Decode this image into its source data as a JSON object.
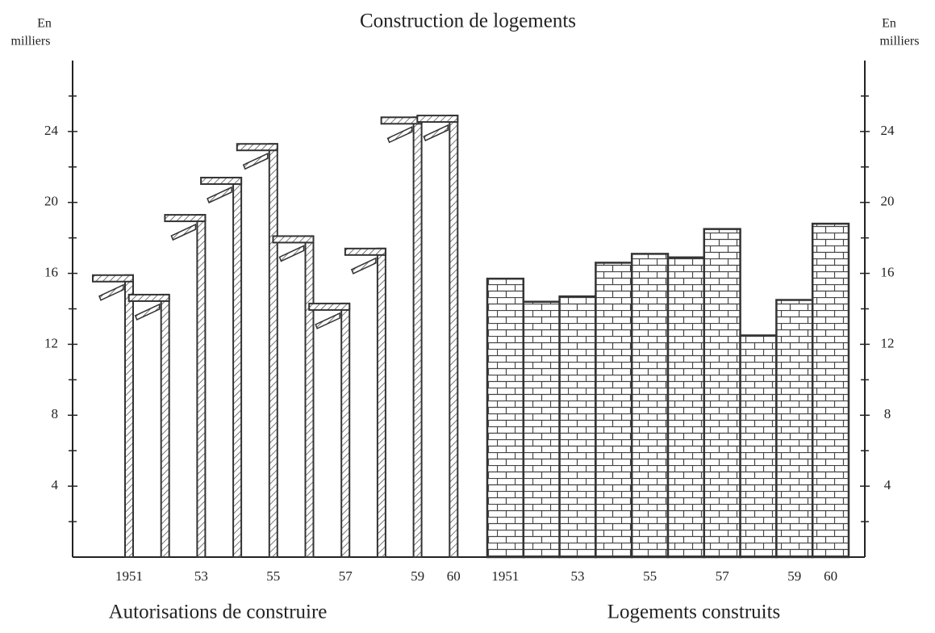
{
  "chart_data": [
    {
      "type": "crane-bar",
      "title": "Construction de logements",
      "y_label": [
        "En",
        "milliers"
      ],
      "subtitle": "Autorisations de construire",
      "categories": [
        "1951",
        null,
        "53",
        null,
        "55",
        null,
        "57",
        null,
        "59",
        "60"
      ],
      "values": [
        15.9,
        14.8,
        19.3,
        21.4,
        23.3,
        18.1,
        14.3,
        17.4,
        24.8,
        24.9
      ],
      "ylim": [
        0,
        28
      ],
      "yticks": [
        4,
        8,
        12,
        16,
        20,
        24
      ],
      "yticks_minor": [
        2,
        6,
        10,
        14,
        18,
        22,
        26
      ],
      "color": "#333333"
    },
    {
      "type": "brick-bar",
      "y2_label": [
        "En",
        "milliers"
      ],
      "subtitle": "Logements construits",
      "categories": [
        "1951",
        null,
        "53",
        null,
        "55",
        null,
        "57",
        null,
        "59",
        "60"
      ],
      "values": [
        15.7,
        14.4,
        14.7,
        16.6,
        17.1,
        16.9,
        18.5,
        12.5,
        14.5,
        18.8
      ],
      "y2lim": [
        0,
        28
      ],
      "y2ticks": [
        4,
        8,
        12,
        16,
        20,
        24
      ],
      "y2ticks_minor": [
        2,
        6,
        10,
        14,
        18,
        22,
        26
      ],
      "color": "#333333"
    }
  ]
}
